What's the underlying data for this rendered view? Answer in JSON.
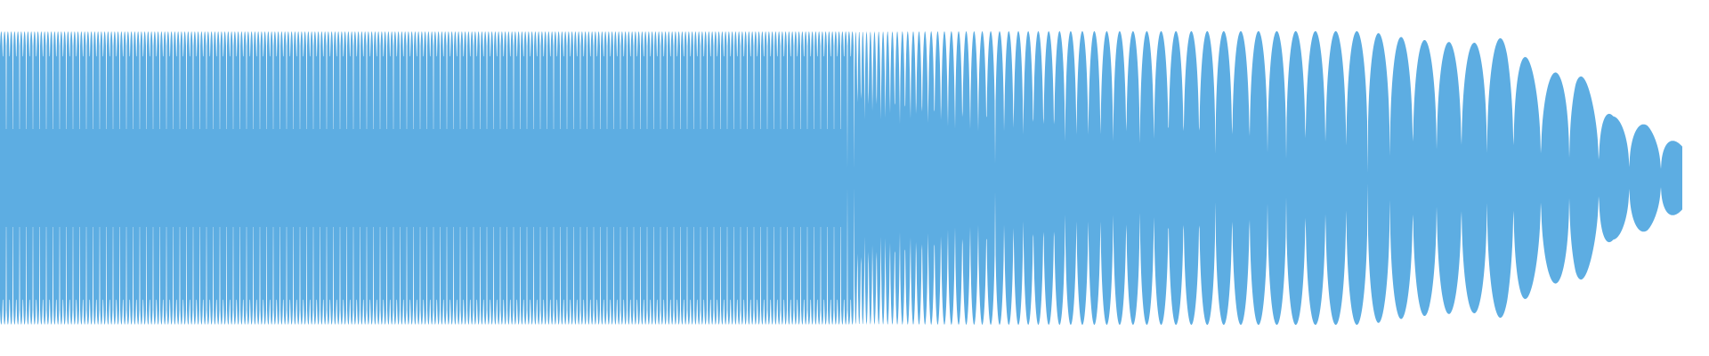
{
  "waveform": {
    "fill_color": "#5dade2",
    "background_color": "#ffffff",
    "envelope_peaks": [
      {
        "position": 0.0,
        "amplitude": 1.0
      },
      {
        "position": 0.1,
        "amplitude": 1.0
      },
      {
        "position": 0.2,
        "amplitude": 1.0
      },
      {
        "position": 0.3,
        "amplitude": 1.0
      },
      {
        "position": 0.4,
        "amplitude": 1.0
      },
      {
        "position": 0.5,
        "amplitude": 1.0
      },
      {
        "position": 0.52,
        "amplitude": 1.0
      },
      {
        "position": 0.54,
        "amplitude": 1.0
      },
      {
        "position": 0.56,
        "amplitude": 1.0
      },
      {
        "position": 0.58,
        "amplitude": 1.0
      },
      {
        "position": 0.6,
        "amplitude": 1.0
      },
      {
        "position": 0.62,
        "amplitude": 1.0
      },
      {
        "position": 0.64,
        "amplitude": 1.0
      },
      {
        "position": 0.66,
        "amplitude": 1.0
      },
      {
        "position": 0.68,
        "amplitude": 1.0
      },
      {
        "position": 0.7,
        "amplitude": 1.0
      },
      {
        "position": 0.72,
        "amplitude": 1.0
      },
      {
        "position": 0.74,
        "amplitude": 1.0
      },
      {
        "position": 0.76,
        "amplitude": 1.0
      },
      {
        "position": 0.78,
        "amplitude": 1.0
      },
      {
        "position": 0.8,
        "amplitude": 1.0
      },
      {
        "position": 0.82,
        "amplitude": 0.96
      },
      {
        "position": 0.84,
        "amplitude": 0.93
      },
      {
        "position": 0.862,
        "amplitude": 0.92
      },
      {
        "position": 0.882,
        "amplitude": 0.96
      },
      {
        "position": 0.903,
        "amplitude": 0.7
      },
      {
        "position": 0.922,
        "amplitude": 0.75
      },
      {
        "position": 0.944,
        "amplitude": 0.42
      },
      {
        "position": 0.964,
        "amplitude": 0.36
      },
      {
        "position": 0.985,
        "amplitude": 0.22
      }
    ]
  }
}
